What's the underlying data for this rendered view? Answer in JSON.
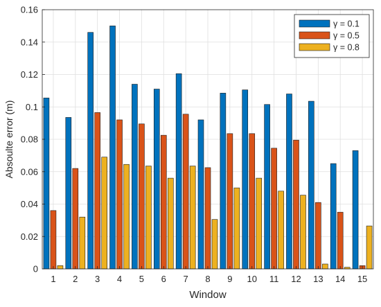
{
  "chart_data": {
    "type": "bar",
    "title": "",
    "xlabel": "Window",
    "ylabel": "Absoulte error (m)",
    "categories": [
      "1",
      "2",
      "3",
      "4",
      "5",
      "6",
      "7",
      "8",
      "9",
      "10",
      "11",
      "12",
      "13",
      "14",
      "15"
    ],
    "ylim": [
      0,
      0.16
    ],
    "yticks": [
      0,
      0.02,
      0.04,
      0.06,
      0.08,
      0.1,
      0.12,
      0.14,
      0.16
    ],
    "ytick_labels": [
      "0",
      "0.02",
      "0.04",
      "0.06",
      "0.08",
      "0.1",
      "0.12",
      "0.14",
      "0.16"
    ],
    "grid": true,
    "legend_position": "top-right",
    "series": [
      {
        "name": "γ = 0.1",
        "color": "#0072BD",
        "values": [
          0.1055,
          0.0935,
          0.146,
          0.15,
          0.114,
          0.111,
          0.1205,
          0.092,
          0.1085,
          0.1105,
          0.1015,
          0.108,
          0.1035,
          0.065,
          0.073
        ]
      },
      {
        "name": "γ = 0.5",
        "color": "#D95319",
        "values": [
          0.036,
          0.062,
          0.0965,
          0.092,
          0.0895,
          0.0825,
          0.0955,
          0.0625,
          0.0835,
          0.0835,
          0.0745,
          0.0795,
          0.041,
          0.035,
          0.002
        ]
      },
      {
        "name": "γ = 0.8",
        "color": "#EDB120",
        "values": [
          0.002,
          0.032,
          0.069,
          0.0645,
          0.0635,
          0.056,
          0.0635,
          0.0305,
          0.05,
          0.056,
          0.048,
          0.0455,
          0.003,
          0.001,
          0.0265
        ]
      }
    ]
  }
}
